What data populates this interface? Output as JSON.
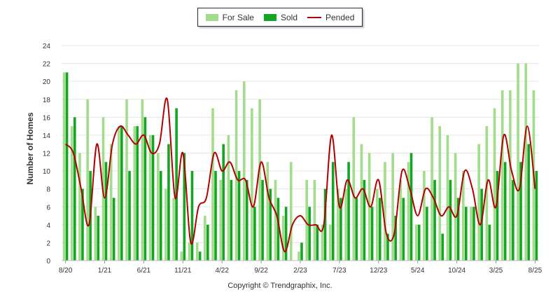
{
  "legend": {
    "for_sale_label": "For Sale",
    "sold_label": "Sold",
    "pended_label": "Pended"
  },
  "colors": {
    "for_sale": "#a2dc8c",
    "sold": "#14a623",
    "pended": "#b30000",
    "grid": "#e6e6e6"
  },
  "copyright": "Copyright © Trendgraphix, Inc.",
  "chart_data": {
    "type": "bar",
    "title": "",
    "xlabel": "",
    "ylabel": "Number of Homes",
    "ylim": [
      0,
      24
    ],
    "yticks": [
      0,
      2,
      4,
      6,
      8,
      10,
      12,
      14,
      16,
      18,
      20,
      22,
      24
    ],
    "xtick_labels": [
      {
        "index": 0,
        "label": "8/20"
      },
      {
        "index": 5,
        "label": "1/21"
      },
      {
        "index": 10,
        "label": "6/21"
      },
      {
        "index": 15,
        "label": "11/21"
      },
      {
        "index": 20,
        "label": "4/22"
      },
      {
        "index": 25,
        "label": "9/22"
      },
      {
        "index": 30,
        "label": "2/23"
      },
      {
        "index": 35,
        "label": "7/23"
      },
      {
        "index": 40,
        "label": "12/23"
      },
      {
        "index": 45,
        "label": "5/24"
      },
      {
        "index": 50,
        "label": "10/24"
      },
      {
        "index": 55,
        "label": "3/25"
      },
      {
        "index": 60,
        "label": "8/25"
      }
    ],
    "grid": true,
    "legend_position": "top-center",
    "months": [
      "8/20",
      "9/20",
      "10/20",
      "11/20",
      "12/20",
      "1/21",
      "2/21",
      "3/21",
      "4/21",
      "5/21",
      "6/21",
      "7/21",
      "8/21",
      "9/21",
      "10/21",
      "11/21",
      "12/21",
      "1/22",
      "2/22",
      "3/22",
      "4/22",
      "5/22",
      "6/22",
      "7/22",
      "8/22",
      "9/22",
      "10/22",
      "11/22",
      "12/22",
      "1/23",
      "2/23",
      "3/23",
      "4/23",
      "5/23",
      "6/23",
      "7/23",
      "8/23",
      "9/23",
      "10/23",
      "11/23",
      "12/23",
      "1/24",
      "2/24",
      "3/24",
      "4/24",
      "5/24",
      "6/24",
      "7/24",
      "8/24",
      "9/24",
      "10/24",
      "11/24",
      "12/24",
      "1/25",
      "2/25",
      "3/25",
      "4/25",
      "5/25",
      "6/25",
      "7/25",
      "8/25"
    ],
    "series": [
      {
        "name": "For Sale",
        "kind": "bar",
        "values": [
          21,
          15,
          12,
          18,
          6,
          16,
          13,
          15,
          18,
          15,
          18,
          14,
          12,
          8,
          7,
          1,
          2,
          2,
          5,
          17,
          9,
          14,
          19,
          20,
          17,
          18,
          11,
          9,
          5,
          11,
          1,
          9,
          9,
          4,
          4,
          8,
          8,
          16,
          13,
          12,
          8,
          11,
          12,
          9,
          11,
          4,
          10,
          16,
          15,
          14,
          12,
          10,
          6,
          13,
          15,
          17,
          19,
          19,
          22,
          22,
          19
        ]
      },
      {
        "name": "Sold",
        "kind": "bar",
        "values": [
          21,
          16,
          8,
          10,
          5,
          11,
          7,
          15,
          10,
          15,
          16,
          14,
          10,
          13,
          17,
          12,
          10,
          1,
          4,
          10,
          13,
          9,
          10,
          9,
          6,
          9,
          8,
          7,
          6,
          0,
          2,
          6,
          4,
          8,
          11,
          7,
          11,
          7,
          9,
          6,
          7,
          3,
          5,
          7,
          12,
          4,
          6,
          9,
          3,
          9,
          7,
          6,
          6,
          8,
          4,
          10,
          11,
          9,
          11,
          13,
          10
        ]
      },
      {
        "name": "Pended",
        "kind": "line",
        "values": [
          13,
          12,
          8,
          4,
          13,
          7,
          13,
          15,
          14,
          13,
          14,
          12,
          13,
          18,
          7,
          12,
          2,
          6,
          7,
          12,
          10,
          11,
          9,
          9,
          6,
          11,
          7,
          5,
          1,
          4,
          5,
          4,
          4,
          4,
          14,
          6,
          9,
          7,
          8,
          6,
          9,
          3,
          3,
          10,
          8,
          5,
          8,
          7,
          5,
          6,
          5,
          10,
          8,
          4,
          9,
          6,
          14,
          10,
          8,
          15,
          8
        ]
      }
    ]
  }
}
